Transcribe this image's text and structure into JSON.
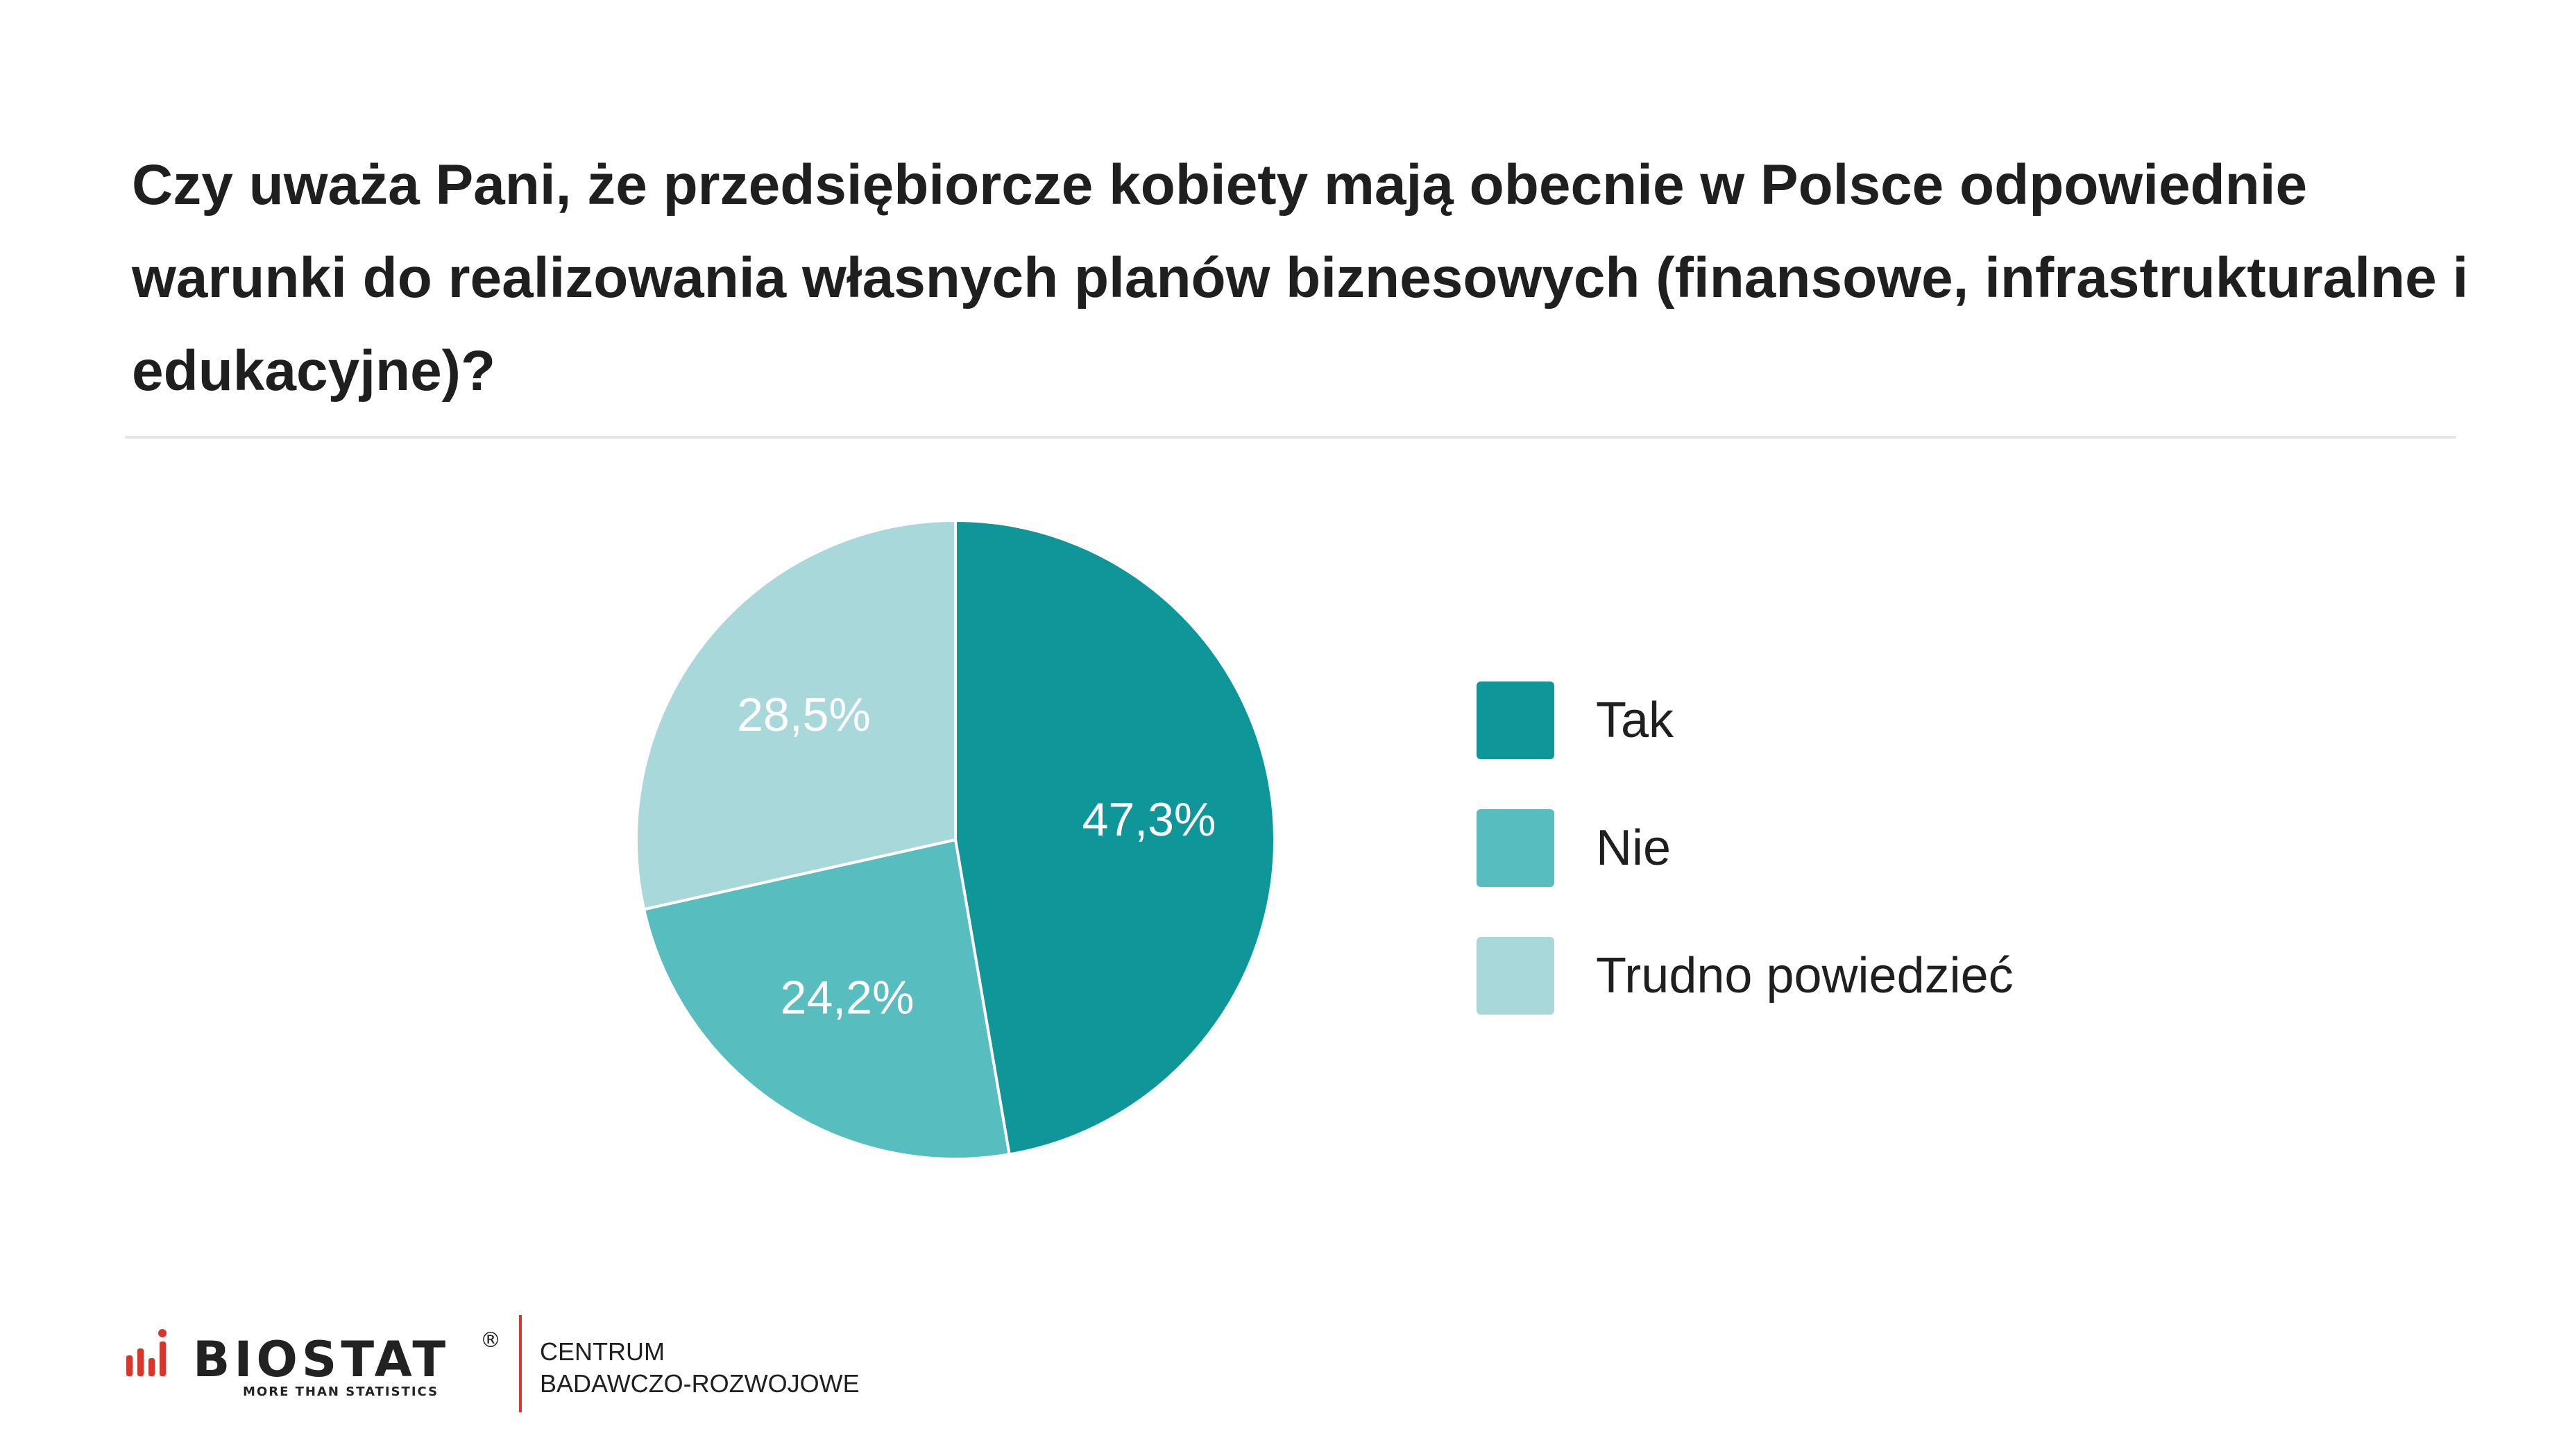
{
  "header": {
    "title": "Czy uważa Pani, że przedsiębiorcze kobiety mają obecnie w Polsce odpowiednie warunki do realizowania własnych planów biznesowych (finansowe, infrastrukturalne i edukacyjne)?"
  },
  "chart_data": {
    "type": "pie",
    "title": "Czy uważa Pani, że przedsiębiorcze kobiety mają obecnie w Polsce odpowiednie warunki do realizowania własnych planów biznesowych (finansowe, infrastrukturalne i edukacyjne)?",
    "categories": [
      "Tak",
      "Nie",
      "Trudno powiedzieć"
    ],
    "values": [
      47.3,
      24.2,
      28.5
    ],
    "value_labels": [
      "47,3%",
      "24,2%",
      "28,5%"
    ],
    "colors": [
      "#0e9698",
      "#58bdbe",
      "#a8d8da"
    ],
    "start_angle_deg": 0,
    "direction": "clockwise",
    "legend_position": "right"
  },
  "legend": {
    "items": [
      {
        "label": "Tak",
        "color": "#0e9698"
      },
      {
        "label": "Nie",
        "color": "#58bdbe"
      },
      {
        "label": "Trudno powiedzieć",
        "color": "#a8d8da"
      }
    ]
  },
  "footer": {
    "brand": "BIOSTAT",
    "registered": "®",
    "tagline": "MORE THAN STATISTICS",
    "unit_line1": "CENTRUM",
    "unit_line2": "BADAWCZO-ROZWOJOWE",
    "brand_color": "#d9362b"
  }
}
